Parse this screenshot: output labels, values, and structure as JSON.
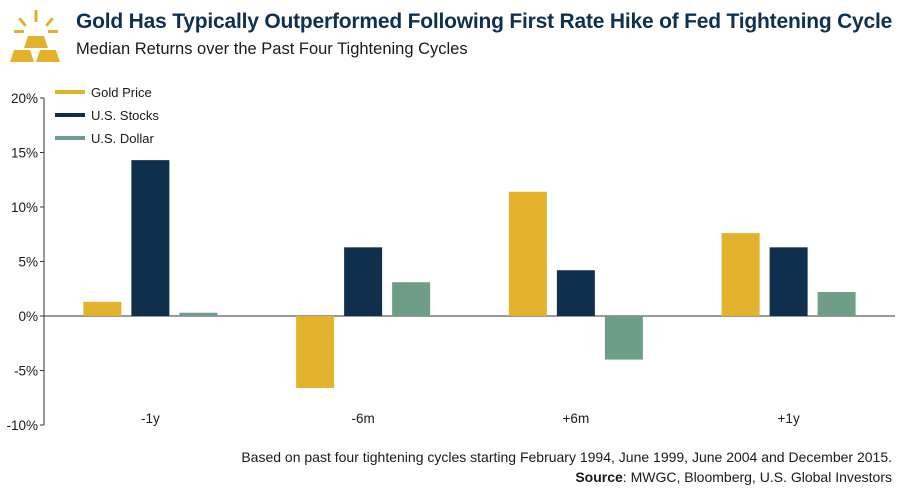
{
  "header": {
    "title": "Gold Has Typically Outperformed Following First Rate Hike of Fed Tightening Cycle",
    "subtitle": "Median Returns over the Past Four Tightening Cycles"
  },
  "footer": {
    "note": "Based on past four tightening cycles starting February 1994, June 1999, June 2004 and December 2015.",
    "source_label": "Source",
    "source_text": ": MWGC, Bloomberg, U.S. Global Investors"
  },
  "logo": {
    "icon": "gold-bars-icon",
    "color": "#e2b22c"
  },
  "chart_data": {
    "type": "bar",
    "categories": [
      "-1y",
      "-6m",
      "+6m",
      "+1y"
    ],
    "series": [
      {
        "name": "Gold Price",
        "color": "#e2b22c",
        "values": [
          1.3,
          -6.6,
          11.4,
          7.6
        ]
      },
      {
        "name": "U.S. Stocks",
        "color": "#0f2f4d",
        "values": [
          14.3,
          6.3,
          4.2,
          6.3
        ]
      },
      {
        "name": "U.S. Dollar",
        "color": "#6f9e88",
        "values": [
          0.3,
          3.1,
          -4.0,
          2.2
        ]
      }
    ],
    "yticks": [
      "20%",
      "15%",
      "10%",
      "5%",
      "0%",
      "-5%",
      "-10%"
    ],
    "ytick_values": [
      20,
      15,
      10,
      5,
      0,
      -5,
      -10
    ],
    "ylim": [
      -10,
      20
    ],
    "xlabel": "",
    "ylabel": "",
    "legend": "top-left",
    "grid": false
  }
}
